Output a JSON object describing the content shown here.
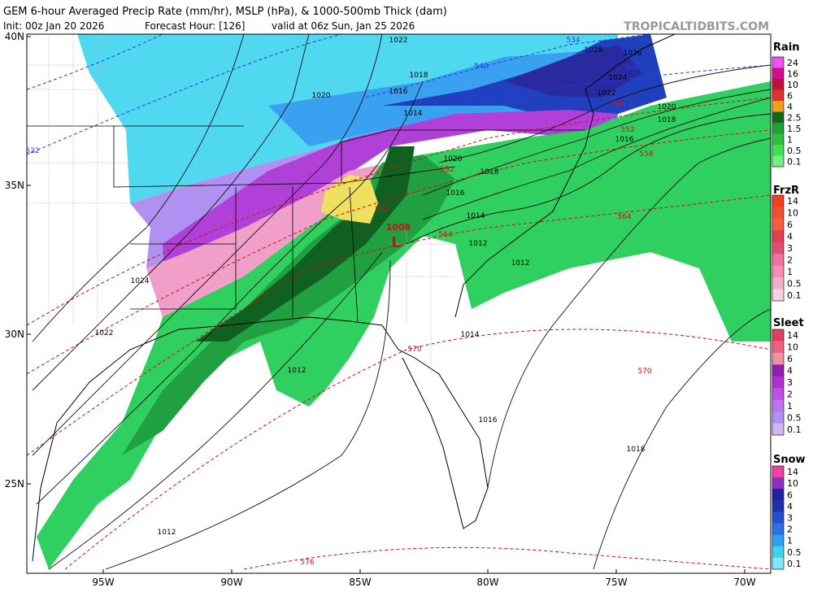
{
  "header": {
    "title": "GEM 6-hour Averaged Precip Rate (mm/hr), MSLP (hPa), & 1000-500mb Thick (dam)",
    "init": "Init: 00z Jan 20 2026",
    "forecast": "Forecast Hour: [126]",
    "valid": "valid at 06z Sun, Jan 25 2026",
    "site": "TROPICALTIDBITS.COM"
  },
  "axes": {
    "lat_labels": [
      "40N",
      "35N",
      "30N",
      "25N"
    ],
    "lon_labels": [
      "95W",
      "90W",
      "85W",
      "80W",
      "75W",
      "70W"
    ]
  },
  "legends": [
    {
      "title": "Rain",
      "labels": [
        "24",
        "16",
        "10",
        "6",
        "4",
        "2.5",
        "1.5",
        "1",
        "0.5",
        "0.1"
      ],
      "colors": [
        "#f050f0",
        "#d01090",
        "#c01040",
        "#e03030",
        "#f0a020",
        "#106818",
        "#20a030",
        "#30c040",
        "#40e050",
        "#70f080"
      ]
    },
    {
      "title": "FrzR",
      "labels": [
        "14",
        "10",
        "6",
        "4",
        "3",
        "2",
        "1",
        "0.5",
        "0.1"
      ],
      "colors": [
        "#f04020",
        "#f05030",
        "#f06040",
        "#e04050",
        "#e05070",
        "#f070a0",
        "#f090b0",
        "#f0b0c8",
        "#f8d0e0"
      ]
    },
    {
      "title": "Sleet",
      "labels": [
        "14",
        "10",
        "6",
        "4",
        "3",
        "2",
        "1",
        "0.5",
        "0.1"
      ],
      "colors": [
        "#e04060",
        "#f06080",
        "#f090a0",
        "#9020b0",
        "#b030d0",
        "#c050e0",
        "#c070f0",
        "#b090f0",
        "#d0b8f8"
      ]
    },
    {
      "title": "Snow",
      "labels": [
        "14",
        "10",
        "6",
        "4",
        "3",
        "2",
        "1",
        "0.5",
        "0.1"
      ],
      "colors": [
        "#f040a0",
        "#9030c0",
        "#2020a0",
        "#2030b0",
        "#2050d0",
        "#3070e0",
        "#30a0f0",
        "#40d0f0",
        "#80e8f8"
      ]
    }
  ],
  "isobars": [
    "1022",
    "1028",
    "1026",
    "1018",
    "1024",
    "1020",
    "1016",
    "1014",
    "1022",
    "1020",
    "1018",
    "1016",
    "1020",
    "1018",
    "1016",
    "1014",
    "1012",
    "1012",
    "1024",
    "1022",
    "1014",
    "1012",
    "1016",
    "1018",
    "1012"
  ],
  "thickness": [
    "534",
    "540",
    "540",
    "546",
    "552",
    "558",
    "522",
    "552",
    "558",
    "564",
    "564",
    "570",
    "570",
    "576"
  ],
  "low": {
    "pressure": "1008",
    "symbol": "L"
  }
}
